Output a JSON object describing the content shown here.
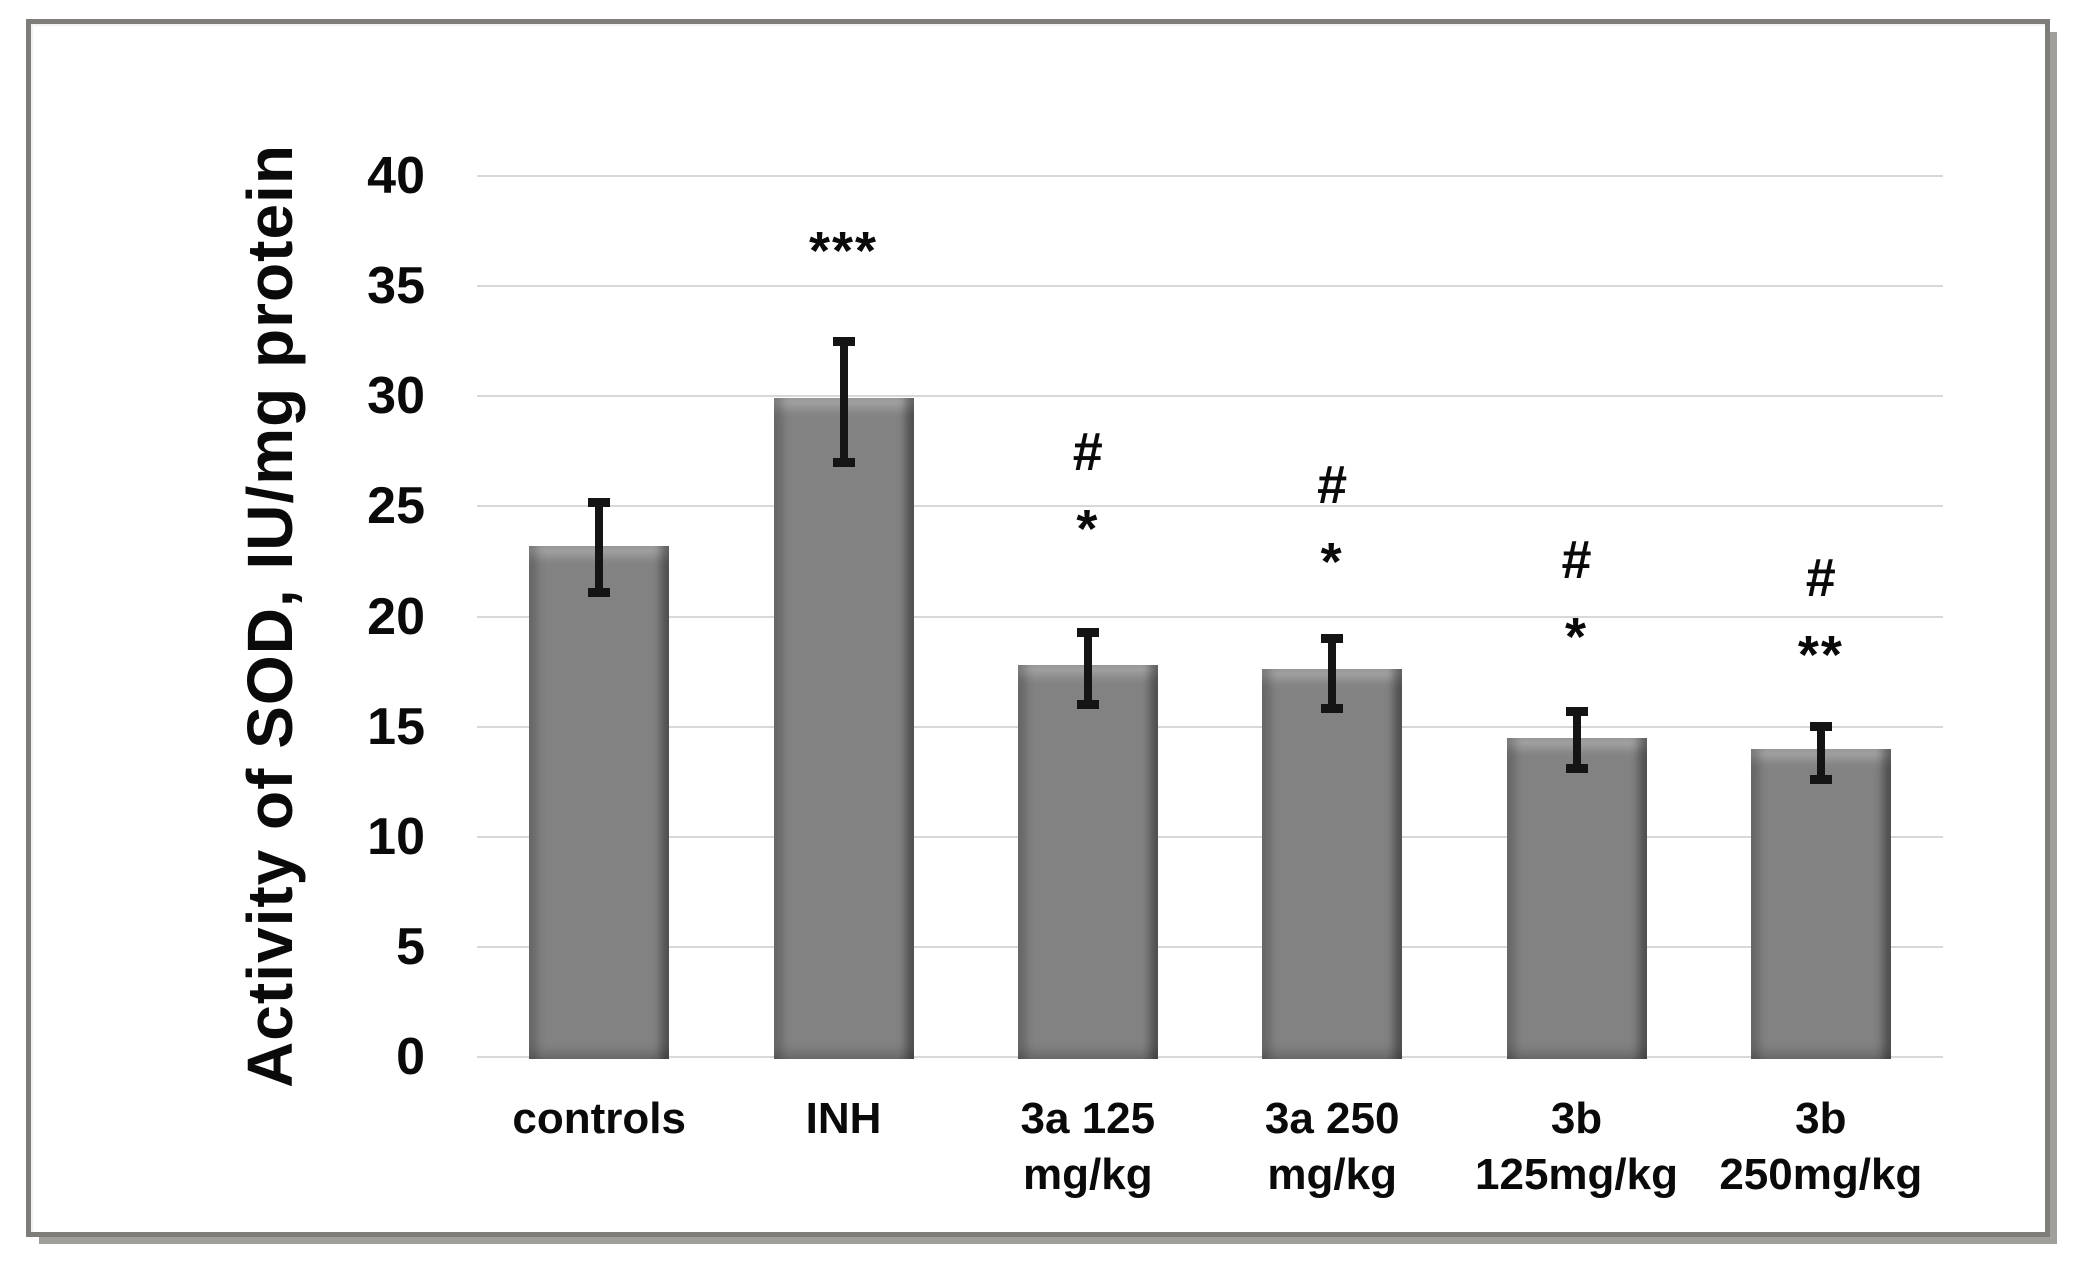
{
  "figure": {
    "background": "#ffffff",
    "frame_color": "#7e7d79",
    "frame_shadow_color": "#a09f99",
    "gridline_color": "#d8d8d8",
    "bar_color": "#828282",
    "error_bar_color": "#141414",
    "text_color": "#0a0a0a"
  },
  "chart_data": {
    "type": "bar",
    "title": "",
    "xlabel": "",
    "ylabel": "Activity of SOD, IU/mg protein",
    "ylim": [
      0,
      40
    ],
    "yticks": [
      40,
      35,
      30,
      25,
      20,
      15,
      10,
      5,
      0
    ],
    "grid": "horizontal",
    "legend": "none",
    "categories": [
      "controls",
      "INH",
      "3a 125 mg/kg",
      "3a 250 mg/kg",
      "3b 125mg/kg",
      "3b 250mg/kg"
    ],
    "bars": [
      {
        "label_lines": [
          "controls"
        ],
        "value": 23.2,
        "err_low": 20.9,
        "err_high": 25.4,
        "annotations": [],
        "anno_center": null
      },
      {
        "label_lines": [
          "INH"
        ],
        "value": 29.9,
        "err_low": 26.8,
        "err_high": 32.7,
        "annotations": [
          "***"
        ],
        "anno_center": 37.2
      },
      {
        "label_lines": [
          "3a 125",
          "mg/kg"
        ],
        "value": 17.8,
        "err_low": 15.8,
        "err_high": 19.5,
        "annotations": [
          "#",
          "*"
        ],
        "anno_center": 26.0
      },
      {
        "label_lines": [
          "3a 250",
          "mg/kg"
        ],
        "value": 17.6,
        "err_low": 15.6,
        "err_high": 19.2,
        "annotations": [
          "#",
          "*"
        ],
        "anno_center": 24.5
      },
      {
        "label_lines": [
          "3b",
          "125mg/kg"
        ],
        "value": 14.5,
        "err_low": 12.9,
        "err_high": 15.9,
        "annotations": [
          "#",
          "*"
        ],
        "anno_center": 21.1
      },
      {
        "label_lines": [
          "3b",
          "250mg/kg"
        ],
        "value": 14.0,
        "err_low": 12.4,
        "err_high": 15.2,
        "annotations": [
          "#",
          "**"
        ],
        "anno_center": 20.3
      }
    ]
  }
}
